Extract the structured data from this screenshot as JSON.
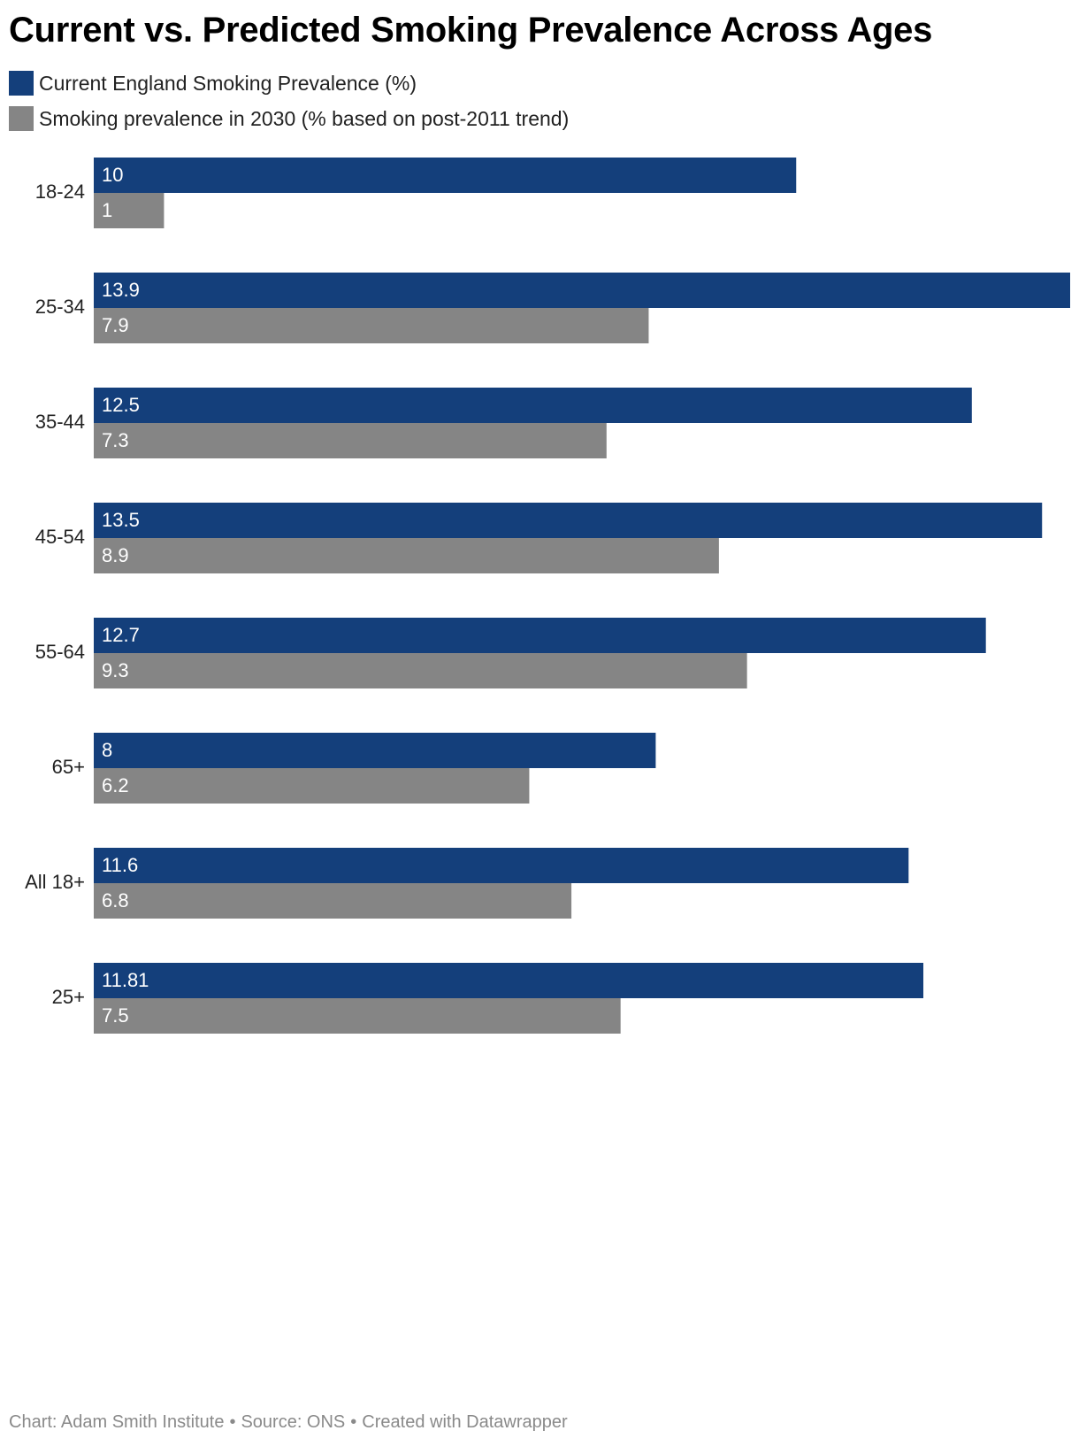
{
  "colors": {
    "current": "#143f7b",
    "predicted": "#858585"
  },
  "footer": {
    "chart": "Chart: Adam Smith Institute",
    "source": "Source: ONS",
    "created": "Created with Datawrapper",
    "separator": "•"
  },
  "chart_data": {
    "type": "bar",
    "orientation": "horizontal",
    "title": "Current vs. Predicted Smoking Prevalence Across Ages",
    "legend_position": "top-left",
    "grid": false,
    "xlim": [
      0,
      13.9
    ],
    "categories": [
      "18-24",
      "25-34",
      "35-44",
      "45-54",
      "55-64",
      "65+",
      "All 18+",
      "25+"
    ],
    "series": [
      {
        "name": "Current England Smoking Prevalence (%)",
        "values": [
          10,
          13.9,
          12.5,
          13.5,
          12.7,
          8,
          11.6,
          11.81
        ]
      },
      {
        "name": "Smoking prevalence in 2030 (% based on post-2011 trend)",
        "values": [
          1,
          7.9,
          7.3,
          8.9,
          9.3,
          6.2,
          6.8,
          7.5
        ]
      }
    ]
  }
}
